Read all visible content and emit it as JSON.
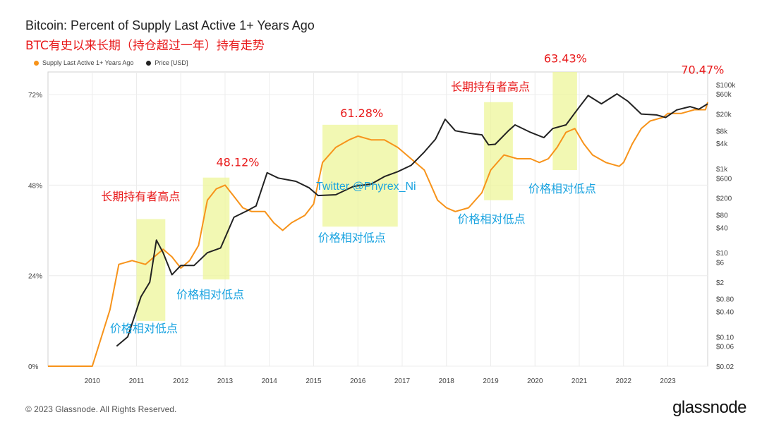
{
  "header": {
    "title": "Bitcoin: Percent of Supply Last Active 1+ Years Ago",
    "subtitle": "BTC有史以来长期（持仓超过一年）持有走势"
  },
  "legend": [
    {
      "label": "Supply Last Active 1+ Years Ago",
      "color": "#f7931a"
    },
    {
      "label": "Price [USD]",
      "color": "#222222"
    }
  ],
  "footer": {
    "copyright": "© 2023 Glassnode. All Rights Reserved.",
    "logo": "glassnode"
  },
  "watermark": "Twitter @Phyrex_Ni",
  "chart_data": {
    "type": "line",
    "x_start": 2009.0,
    "x_end": 2023.9,
    "left_axis": {
      "ticks": [
        0,
        24,
        48,
        72
      ],
      "unit": "%",
      "range": [
        0,
        78
      ]
    },
    "right_axis": {
      "scale": "log",
      "range": [
        0.02,
        200000
      ],
      "ticks": [
        100000,
        60000,
        20000,
        8000,
        4000,
        1000,
        600,
        200,
        80,
        40,
        10,
        6,
        2,
        0.8,
        0.4,
        0.1,
        0.06,
        0.02
      ],
      "tick_labels": [
        "$100k",
        "$60k",
        "$20k",
        "$8k",
        "$4k",
        "$1k",
        "$600",
        "$200",
        "$80",
        "$40",
        "$10",
        "$6",
        "$2",
        "$0.80",
        "$0.40",
        "$0.10",
        "$0.06",
        "$0.02"
      ]
    },
    "x_ticks": [
      2010,
      2011,
      2012,
      2013,
      2014,
      2015,
      2016,
      2017,
      2018,
      2019,
      2020,
      2021,
      2022,
      2023
    ],
    "series": [
      {
        "name": "Supply Last Active 1+ Years Ago",
        "color": "#f7931a",
        "axis": "left",
        "points": [
          [
            2009.0,
            0
          ],
          [
            2010.0,
            0
          ],
          [
            2010.4,
            15
          ],
          [
            2010.6,
            27
          ],
          [
            2010.9,
            28
          ],
          [
            2011.2,
            27
          ],
          [
            2011.4,
            29
          ],
          [
            2011.6,
            31
          ],
          [
            2011.8,
            29
          ],
          [
            2012.0,
            26
          ],
          [
            2012.2,
            28
          ],
          [
            2012.4,
            32
          ],
          [
            2012.6,
            44
          ],
          [
            2012.8,
            47
          ],
          [
            2013.0,
            48
          ],
          [
            2013.2,
            45
          ],
          [
            2013.4,
            42
          ],
          [
            2013.6,
            41
          ],
          [
            2013.9,
            41
          ],
          [
            2014.1,
            38
          ],
          [
            2014.3,
            36
          ],
          [
            2014.5,
            38
          ],
          [
            2014.8,
            40
          ],
          [
            2015.0,
            43
          ],
          [
            2015.2,
            54
          ],
          [
            2015.5,
            58
          ],
          [
            2015.8,
            60
          ],
          [
            2016.0,
            61
          ],
          [
            2016.3,
            60
          ],
          [
            2016.6,
            60
          ],
          [
            2016.9,
            58
          ],
          [
            2017.2,
            55
          ],
          [
            2017.5,
            52
          ],
          [
            2017.8,
            44
          ],
          [
            2018.0,
            42
          ],
          [
            2018.2,
            41
          ],
          [
            2018.5,
            42
          ],
          [
            2018.8,
            46
          ],
          [
            2019.0,
            52
          ],
          [
            2019.3,
            56
          ],
          [
            2019.6,
            55
          ],
          [
            2019.9,
            55
          ],
          [
            2020.1,
            54
          ],
          [
            2020.3,
            55
          ],
          [
            2020.5,
            58
          ],
          [
            2020.7,
            62
          ],
          [
            2020.9,
            63
          ],
          [
            2021.1,
            59
          ],
          [
            2021.3,
            56
          ],
          [
            2021.6,
            54
          ],
          [
            2021.9,
            53
          ],
          [
            2022.0,
            54
          ],
          [
            2022.2,
            59
          ],
          [
            2022.4,
            63
          ],
          [
            2022.6,
            65
          ],
          [
            2022.9,
            66
          ],
          [
            2023.0,
            67
          ],
          [
            2023.3,
            67
          ],
          [
            2023.6,
            68
          ],
          [
            2023.85,
            68
          ],
          [
            2023.9,
            70
          ]
        ]
      },
      {
        "name": "Price [USD]",
        "color": "#222222",
        "axis": "right",
        "points": [
          [
            2010.55,
            0.06
          ],
          [
            2010.8,
            0.1
          ],
          [
            2010.95,
            0.3
          ],
          [
            2011.1,
            0.9
          ],
          [
            2011.3,
            2
          ],
          [
            2011.45,
            20
          ],
          [
            2011.6,
            10
          ],
          [
            2011.8,
            3
          ],
          [
            2012.0,
            5
          ],
          [
            2012.3,
            5
          ],
          [
            2012.6,
            10
          ],
          [
            2012.9,
            13
          ],
          [
            2013.2,
            70
          ],
          [
            2013.5,
            100
          ],
          [
            2013.7,
            130
          ],
          [
            2013.95,
            800
          ],
          [
            2014.2,
            600
          ],
          [
            2014.6,
            500
          ],
          [
            2014.9,
            350
          ],
          [
            2015.1,
            230
          ],
          [
            2015.5,
            240
          ],
          [
            2015.9,
            380
          ],
          [
            2016.3,
            430
          ],
          [
            2016.6,
            650
          ],
          [
            2016.9,
            850
          ],
          [
            2017.2,
            1200
          ],
          [
            2017.5,
            2500
          ],
          [
            2017.75,
            5000
          ],
          [
            2017.97,
            15000
          ],
          [
            2018.2,
            8000
          ],
          [
            2018.5,
            7000
          ],
          [
            2018.8,
            6400
          ],
          [
            2018.95,
            3700
          ],
          [
            2019.1,
            3800
          ],
          [
            2019.4,
            8000
          ],
          [
            2019.55,
            11000
          ],
          [
            2019.9,
            7300
          ],
          [
            2020.2,
            5500
          ],
          [
            2020.4,
            9000
          ],
          [
            2020.7,
            11000
          ],
          [
            2020.95,
            25000
          ],
          [
            2021.2,
            55000
          ],
          [
            2021.5,
            35000
          ],
          [
            2021.85,
            60000
          ],
          [
            2022.1,
            40000
          ],
          [
            2022.4,
            20000
          ],
          [
            2022.75,
            19000
          ],
          [
            2022.95,
            16500
          ],
          [
            2023.2,
            25000
          ],
          [
            2023.5,
            30000
          ],
          [
            2023.7,
            26000
          ],
          [
            2023.9,
            35000
          ]
        ]
      }
    ],
    "highlight_boxes": [
      {
        "x0": 2011.0,
        "x1": 2011.65,
        "y0_pct": 12,
        "y1_pct": 39
      },
      {
        "x0": 2012.5,
        "x1": 2013.1,
        "y0_pct": 23,
        "y1_pct": 50
      },
      {
        "x0": 2015.2,
        "x1": 2016.9,
        "y0_pct": 37,
        "y1_pct": 64
      },
      {
        "x0": 2018.85,
        "x1": 2019.5,
        "y0_pct": 44,
        "y1_pct": 70
      },
      {
        "x0": 2020.4,
        "x1": 2020.95,
        "y0_pct": 52,
        "y1_pct": 78
      }
    ],
    "annotations": [
      {
        "text": "48.12%",
        "color": "red",
        "x": 2012.8,
        "y_pct": 53
      },
      {
        "text": "61.28%",
        "color": "red",
        "x": 2015.6,
        "y_pct": 66
      },
      {
        "text": "63.43%",
        "color": "red",
        "x": 2020.2,
        "y_pct": 80.5
      },
      {
        "text": "70.47%",
        "color": "red",
        "x": 2023.3,
        "y_pct": 77.5
      },
      {
        "text": "长期持有者高点",
        "color": "red",
        "x": 2010.2,
        "y_pct": 44
      },
      {
        "text": "长期持有者高点",
        "color": "red",
        "x": 2018.1,
        "y_pct": 73
      },
      {
        "text": "价格相对低点",
        "color": "blue",
        "x": 2010.4,
        "y_pct": 9
      },
      {
        "text": "价格相对低点",
        "color": "blue",
        "x": 2011.9,
        "y_pct": 18
      },
      {
        "text": "价格相对低点",
        "color": "blue",
        "x": 2015.1,
        "y_pct": 33
      },
      {
        "text": "价格相对低点",
        "color": "blue",
        "x": 2018.25,
        "y_pct": 38
      },
      {
        "text": "价格相对低点",
        "color": "blue",
        "x": 2019.85,
        "y_pct": 46
      }
    ]
  }
}
